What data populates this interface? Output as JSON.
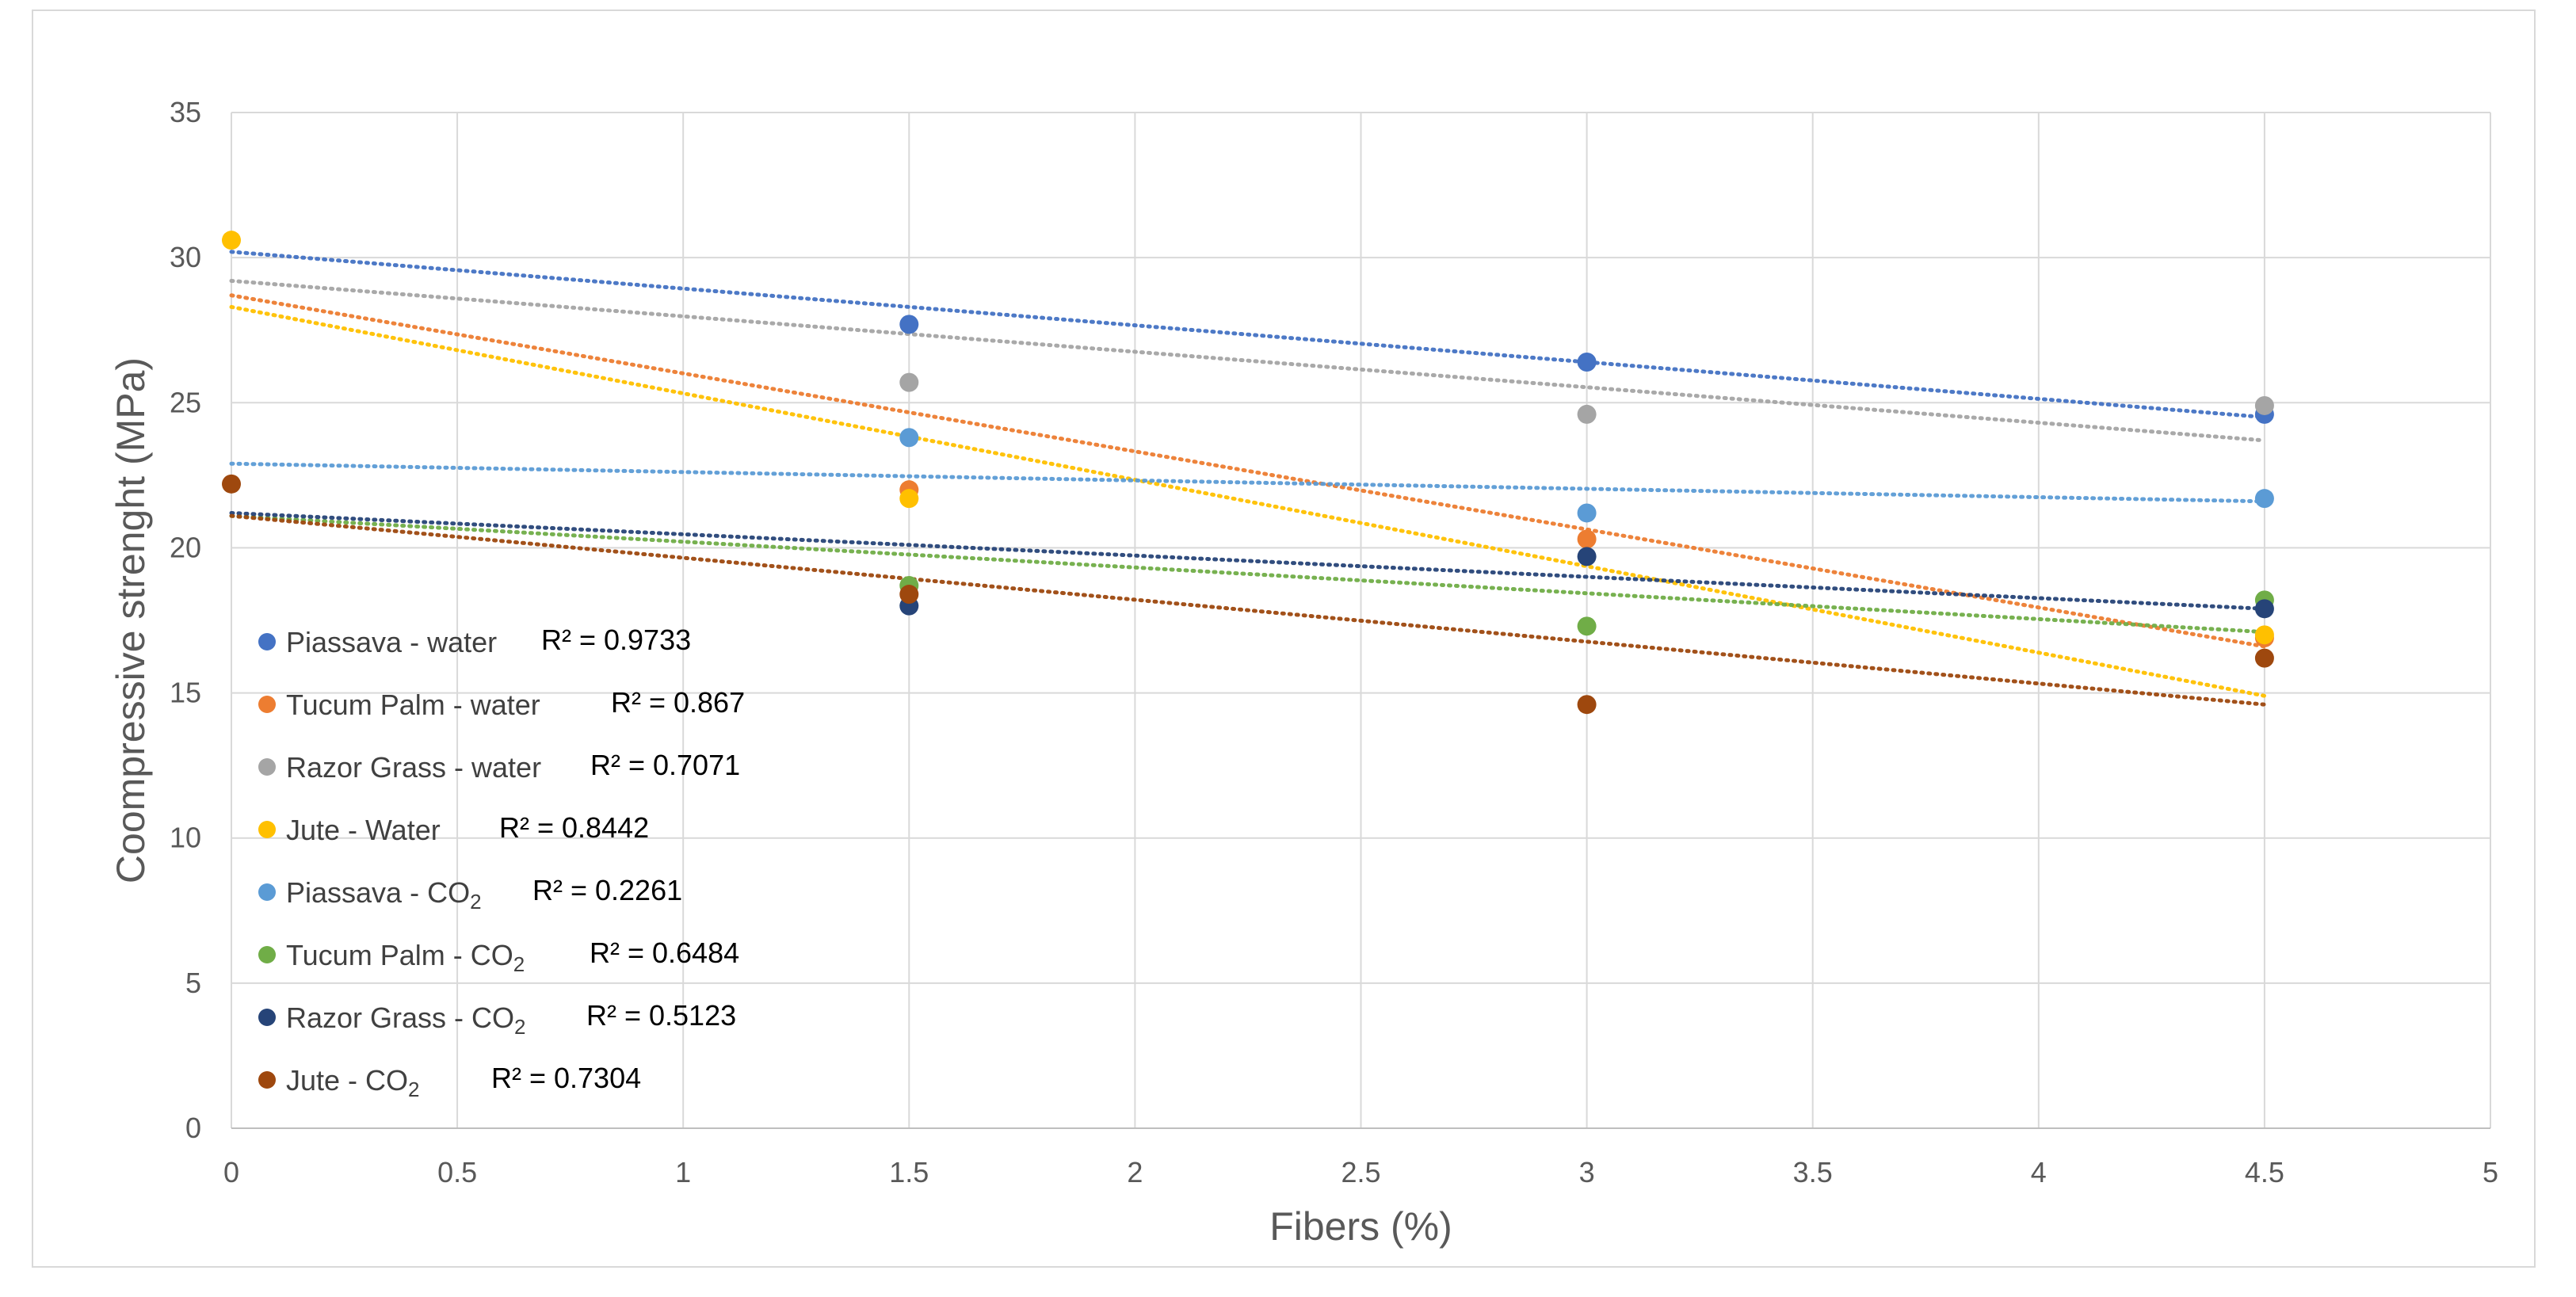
{
  "chart_data": {
    "type": "scatter",
    "title": "",
    "xlabel": "Fibers (%)",
    "ylabel": "Coompressive strenght (MPa)",
    "xlim": [
      0,
      5
    ],
    "ylim": [
      0,
      35
    ],
    "x_ticks": [
      "0",
      "0.5",
      "1",
      "1.5",
      "2",
      "2.5",
      "3",
      "3.5",
      "4",
      "4.5",
      "5"
    ],
    "y_ticks": [
      "0",
      "5",
      "10",
      "15",
      "20",
      "25",
      "30",
      "35"
    ],
    "grid": true,
    "trendline": "linear, dotted",
    "legend_position": "left-inside",
    "series": [
      {
        "name": "Piassava - water",
        "sub": "",
        "r2_label": "R² = 0.9733",
        "color": "#4472c4",
        "trend_color": "#4472c4",
        "points": [
          [
            1.5,
            27.7
          ],
          [
            3,
            26.4
          ],
          [
            4.5,
            24.6
          ]
        ],
        "trend": [
          [
            0,
            30.2
          ],
          [
            4.5,
            24.5
          ]
        ]
      },
      {
        "name": "Tucum Palm - water",
        "sub": "",
        "r2_label": "R² = 0.867",
        "color": "#ed7d31",
        "trend_color": "#ed7d31",
        "points": [
          [
            1.5,
            22.0
          ],
          [
            3,
            20.3
          ],
          [
            4.5,
            16.9
          ]
        ],
        "trend": [
          [
            0,
            28.7
          ],
          [
            4.5,
            16.6
          ]
        ]
      },
      {
        "name": "Razor Grass - water",
        "sub": "",
        "r2_label": "R² = 0.7071",
        "color": "#a5a5a5",
        "trend_color": "#a5a5a5",
        "points": [
          [
            1.5,
            25.7
          ],
          [
            3,
            24.6
          ],
          [
            4.5,
            24.9
          ]
        ],
        "trend": [
          [
            0,
            29.2
          ],
          [
            4.5,
            23.7
          ]
        ]
      },
      {
        "name": "Jute - Water",
        "sub": "",
        "r2_label": "R² = 0.8442",
        "color": "#ffc000",
        "trend_color": "#ffc000",
        "points": [
          [
            0,
            30.6
          ],
          [
            1.5,
            21.7
          ],
          [
            4.5,
            17.0
          ]
        ],
        "trend": [
          [
            0,
            28.3
          ],
          [
            4.5,
            14.9
          ]
        ]
      },
      {
        "name": "Piassava - CO",
        "sub": "2",
        "r2_label": "R² = 0.2261",
        "color": "#5b9bd5",
        "trend_color": "#5b9bd5",
        "points": [
          [
            1.5,
            23.8
          ],
          [
            3,
            21.2
          ],
          [
            4.5,
            21.7
          ]
        ],
        "trend": [
          [
            0,
            22.9
          ],
          [
            4.5,
            21.6
          ]
        ]
      },
      {
        "name": "Tucum Palm - CO",
        "sub": "2",
        "r2_label": "R² = 0.6484",
        "color": "#70ad47",
        "trend_color": "#70ad47",
        "points": [
          [
            1.5,
            18.7
          ],
          [
            3,
            17.3
          ],
          [
            4.5,
            18.2
          ]
        ],
        "trend": [
          [
            0,
            21.1
          ],
          [
            4.5,
            17.1
          ]
        ]
      },
      {
        "name": "Razor Grass - CO",
        "sub": "2",
        "r2_label": "R² = 0.5123",
        "color": "#264478",
        "trend_color": "#264478",
        "points": [
          [
            1.5,
            18.0
          ],
          [
            3,
            19.7
          ],
          [
            4.5,
            17.9
          ]
        ],
        "trend": [
          [
            0,
            21.2
          ],
          [
            4.5,
            17.9
          ]
        ]
      },
      {
        "name": "Jute - CO",
        "sub": "2",
        "r2_label": "R² = 0.7304",
        "color": "#9e480e",
        "trend_color": "#9e480e",
        "points": [
          [
            0,
            22.2
          ],
          [
            1.5,
            18.4
          ],
          [
            3,
            14.6
          ],
          [
            4.5,
            16.2
          ]
        ],
        "trend": [
          [
            0,
            21.1
          ],
          [
            4.5,
            14.6
          ]
        ]
      }
    ]
  }
}
